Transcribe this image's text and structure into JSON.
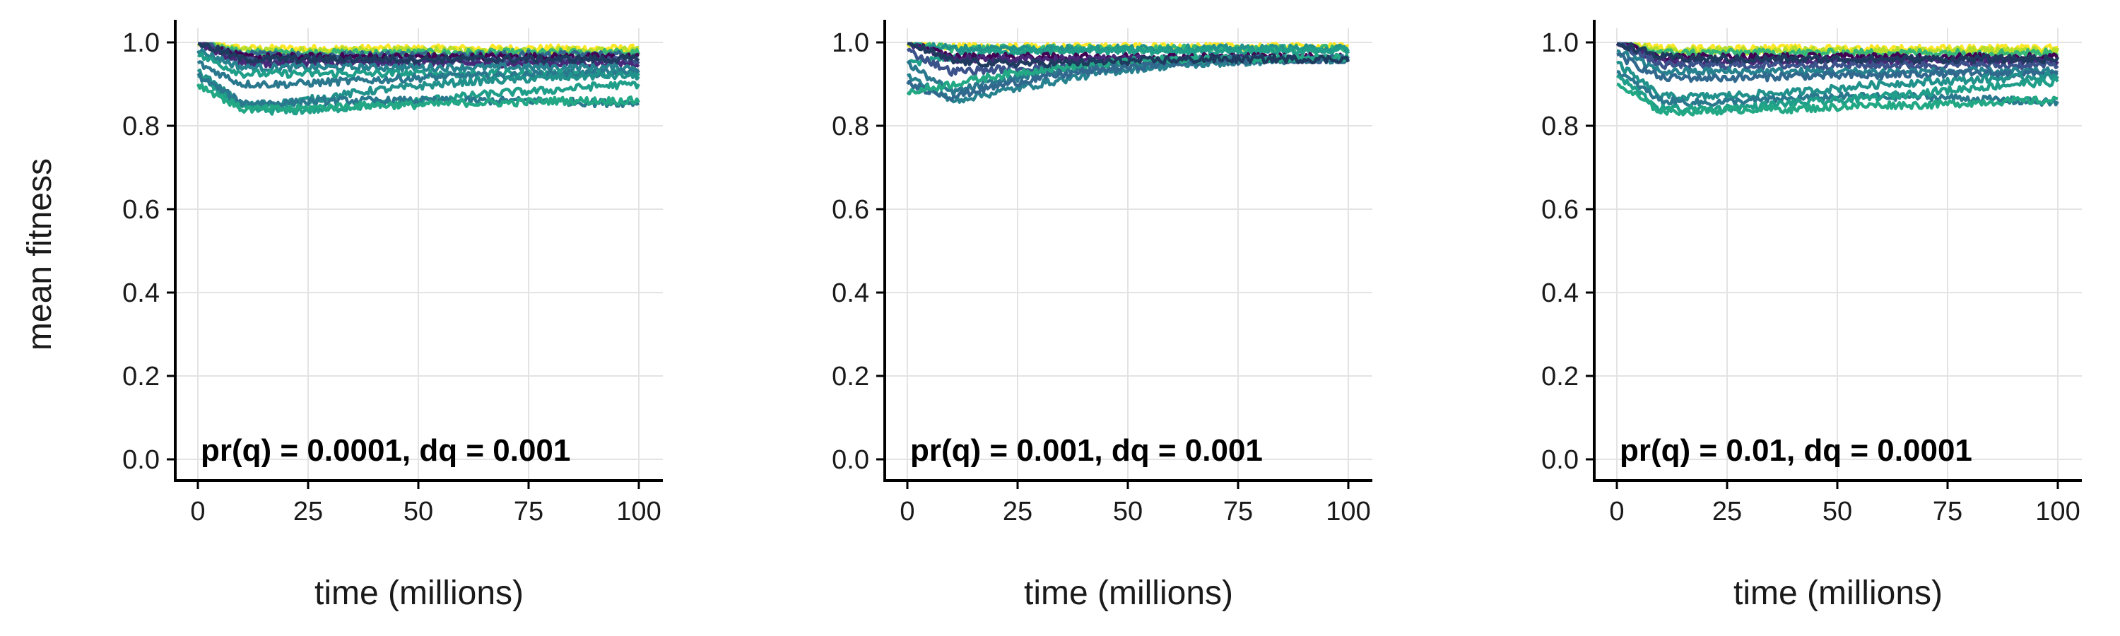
{
  "chart_data": [
    {
      "type": "line",
      "panel": "left",
      "annotation": "pr(q) = 0.0001, dq = 0.001",
      "xlabel": "time (millions)",
      "ylabel": "mean fitness",
      "xlim": [
        0,
        100
      ],
      "ylim": [
        0.0,
        1.0
      ],
      "xticks": [
        "0",
        "25",
        "50",
        "75",
        "100"
      ],
      "yticks": [
        "0.0",
        "0.2",
        "0.4",
        "0.6",
        "0.8",
        "1.0"
      ],
      "grid": true,
      "x": [
        0,
        10,
        20,
        30,
        40,
        50,
        60,
        70,
        80,
        90,
        100
      ],
      "series": [
        {
          "color": "#fde725",
          "values": [
            1.0,
            0.985,
            0.985,
            0.985,
            0.985,
            0.985,
            0.985,
            0.985,
            0.985,
            0.985,
            0.985
          ]
        },
        {
          "color": "#b5de2b",
          "values": [
            1.0,
            0.98,
            0.98,
            0.98,
            0.98,
            0.98,
            0.98,
            0.98,
            0.98,
            0.98,
            0.98
          ]
        },
        {
          "color": "#35b779",
          "values": [
            1.0,
            0.975,
            0.975,
            0.975,
            0.975,
            0.975,
            0.975,
            0.975,
            0.975,
            0.975,
            0.975
          ]
        },
        {
          "color": "#31688e",
          "values": [
            1.0,
            0.97,
            0.97,
            0.97,
            0.97,
            0.97,
            0.97,
            0.97,
            0.97,
            0.97,
            0.97
          ]
        },
        {
          "color": "#440154",
          "values": [
            1.0,
            0.965,
            0.965,
            0.965,
            0.965,
            0.965,
            0.965,
            0.965,
            0.965,
            0.965,
            0.965
          ]
        },
        {
          "color": "#3b528b",
          "values": [
            1.0,
            0.955,
            0.955,
            0.955,
            0.955,
            0.955,
            0.955,
            0.955,
            0.955,
            0.955,
            0.955
          ]
        },
        {
          "color": "#482878",
          "values": [
            1.0,
            0.95,
            0.95,
            0.95,
            0.95,
            0.95,
            0.95,
            0.95,
            0.95,
            0.95,
            0.95
          ]
        },
        {
          "color": "#26828e",
          "values": [
            0.98,
            0.94,
            0.94,
            0.94,
            0.94,
            0.94,
            0.94,
            0.94,
            0.94,
            0.94,
            0.94
          ]
        },
        {
          "color": "#1f9e89",
          "values": [
            0.97,
            0.925,
            0.925,
            0.925,
            0.925,
            0.925,
            0.925,
            0.925,
            0.925,
            0.925,
            0.925
          ]
        },
        {
          "color": "#2a788e",
          "values": [
            0.95,
            0.9,
            0.9,
            0.905,
            0.91,
            0.915,
            0.92,
            0.92,
            0.925,
            0.925,
            0.93
          ]
        },
        {
          "color": "#21918c",
          "values": [
            0.93,
            0.85,
            0.855,
            0.87,
            0.885,
            0.895,
            0.905,
            0.91,
            0.915,
            0.92,
            0.92
          ]
        },
        {
          "color": "#1f9e89",
          "values": [
            0.92,
            0.84,
            0.835,
            0.84,
            0.85,
            0.86,
            0.87,
            0.88,
            0.885,
            0.895,
            0.9
          ]
        },
        {
          "color": "#2a788e",
          "values": [
            0.92,
            0.855,
            0.855,
            0.86,
            0.86,
            0.86,
            0.86,
            0.86,
            0.86,
            0.855,
            0.855
          ]
        },
        {
          "color": "#22a884",
          "values": [
            0.9,
            0.84,
            0.84,
            0.845,
            0.85,
            0.85,
            0.855,
            0.855,
            0.86,
            0.86,
            0.86
          ]
        },
        {
          "color": "#1f3a5f",
          "values": [
            1.0,
            0.96,
            0.96,
            0.96,
            0.96,
            0.96,
            0.96,
            0.96,
            0.96,
            0.96,
            0.96
          ]
        }
      ]
    },
    {
      "type": "line",
      "panel": "middle",
      "annotation": "pr(q) = 0.001, dq = 0.001",
      "xlabel": "time (millions)",
      "ylabel": "",
      "xlim": [
        0,
        100
      ],
      "ylim": [
        0.0,
        1.0
      ],
      "xticks": [
        "0",
        "25",
        "50",
        "75",
        "100"
      ],
      "yticks": [
        "0.0",
        "0.2",
        "0.4",
        "0.6",
        "0.8",
        "1.0"
      ],
      "grid": true,
      "x": [
        0,
        10,
        20,
        30,
        40,
        50,
        60,
        70,
        80,
        90,
        100
      ],
      "series": [
        {
          "color": "#fde725",
          "values": [
            1.0,
            0.99,
            0.99,
            0.99,
            0.99,
            0.99,
            0.99,
            0.99,
            0.99,
            0.99,
            0.99
          ]
        },
        {
          "color": "#35b779",
          "values": [
            1.0,
            0.985,
            0.985,
            0.985,
            0.985,
            0.985,
            0.985,
            0.985,
            0.985,
            0.985,
            0.985
          ]
        },
        {
          "color": "#21918c",
          "values": [
            1.0,
            0.985,
            0.985,
            0.985,
            0.985,
            0.985,
            0.985,
            0.985,
            0.985,
            0.985,
            0.985
          ]
        },
        {
          "color": "#1f9e89",
          "values": [
            0.95,
            0.965,
            0.975,
            0.98,
            0.98,
            0.98,
            0.98,
            0.98,
            0.98,
            0.98,
            0.98
          ]
        },
        {
          "color": "#440154",
          "values": [
            1.0,
            0.965,
            0.965,
            0.965,
            0.965,
            0.965,
            0.965,
            0.965,
            0.965,
            0.965,
            0.965
          ]
        },
        {
          "color": "#482878",
          "values": [
            1.0,
            0.96,
            0.96,
            0.96,
            0.96,
            0.96,
            0.96,
            0.96,
            0.96,
            0.96,
            0.96
          ]
        },
        {
          "color": "#3b528b",
          "values": [
            0.98,
            0.93,
            0.935,
            0.94,
            0.945,
            0.95,
            0.955,
            0.955,
            0.96,
            0.96,
            0.96
          ]
        },
        {
          "color": "#2a788e",
          "values": [
            0.95,
            0.88,
            0.905,
            0.925,
            0.94,
            0.95,
            0.955,
            0.96,
            0.96,
            0.96,
            0.96
          ]
        },
        {
          "color": "#26828e",
          "values": [
            0.92,
            0.86,
            0.88,
            0.9,
            0.92,
            0.935,
            0.945,
            0.95,
            0.955,
            0.958,
            0.96
          ]
        },
        {
          "color": "#31688e",
          "values": [
            0.9,
            0.87,
            0.895,
            0.915,
            0.93,
            0.94,
            0.95,
            0.955,
            0.958,
            0.96,
            0.96
          ]
        },
        {
          "color": "#22a884",
          "values": [
            0.88,
            0.9,
            0.92,
            0.935,
            0.945,
            0.955,
            0.96,
            0.96,
            0.962,
            0.962,
            0.962
          ]
        },
        {
          "color": "#1f3a5f",
          "values": [
            1.0,
            0.955,
            0.95,
            0.95,
            0.952,
            0.955,
            0.958,
            0.96,
            0.96,
            0.96,
            0.96
          ]
        }
      ]
    },
    {
      "type": "line",
      "panel": "right",
      "annotation": "pr(q) = 0.01, dq = 0.0001",
      "xlabel": "time (millions)",
      "ylabel": "",
      "xlim": [
        0,
        100
      ],
      "ylim": [
        0.0,
        1.0
      ],
      "xticks": [
        "0",
        "25",
        "50",
        "75",
        "100"
      ],
      "yticks": [
        "0.0",
        "0.2",
        "0.4",
        "0.6",
        "0.8",
        "1.0"
      ],
      "grid": true,
      "x": [
        0,
        10,
        20,
        30,
        40,
        50,
        60,
        70,
        80,
        90,
        100
      ],
      "series": [
        {
          "color": "#fde725",
          "values": [
            1.0,
            0.985,
            0.985,
            0.985,
            0.985,
            0.985,
            0.985,
            0.985,
            0.985,
            0.985,
            0.985
          ]
        },
        {
          "color": "#b5de2b",
          "values": [
            1.0,
            0.98,
            0.98,
            0.98,
            0.98,
            0.98,
            0.98,
            0.98,
            0.98,
            0.98,
            0.98
          ]
        },
        {
          "color": "#35b779",
          "values": [
            1.0,
            0.975,
            0.975,
            0.975,
            0.975,
            0.975,
            0.975,
            0.975,
            0.975,
            0.975,
            0.975
          ]
        },
        {
          "color": "#440154",
          "values": [
            1.0,
            0.965,
            0.965,
            0.965,
            0.965,
            0.965,
            0.965,
            0.965,
            0.965,
            0.965,
            0.965
          ]
        },
        {
          "color": "#482878",
          "values": [
            1.0,
            0.955,
            0.955,
            0.955,
            0.955,
            0.955,
            0.955,
            0.955,
            0.955,
            0.955,
            0.955
          ]
        },
        {
          "color": "#3b528b",
          "values": [
            1.0,
            0.945,
            0.945,
            0.945,
            0.945,
            0.945,
            0.945,
            0.945,
            0.945,
            0.945,
            0.945
          ]
        },
        {
          "color": "#26828e",
          "values": [
            0.98,
            0.93,
            0.93,
            0.93,
            0.93,
            0.93,
            0.93,
            0.93,
            0.93,
            0.93,
            0.93
          ]
        },
        {
          "color": "#31688e",
          "values": [
            0.97,
            0.915,
            0.915,
            0.915,
            0.92,
            0.92,
            0.92,
            0.925,
            0.925,
            0.925,
            0.925
          ]
        },
        {
          "color": "#21918c",
          "values": [
            0.95,
            0.87,
            0.87,
            0.875,
            0.88,
            0.89,
            0.9,
            0.905,
            0.91,
            0.915,
            0.92
          ]
        },
        {
          "color": "#2a788e",
          "values": [
            0.93,
            0.86,
            0.855,
            0.86,
            0.865,
            0.87,
            0.87,
            0.87,
            0.865,
            0.86,
            0.855
          ]
        },
        {
          "color": "#1f9e89",
          "values": [
            0.92,
            0.84,
            0.84,
            0.845,
            0.855,
            0.86,
            0.87,
            0.88,
            0.89,
            0.9,
            0.905
          ]
        },
        {
          "color": "#22a884",
          "values": [
            0.9,
            0.835,
            0.835,
            0.84,
            0.84,
            0.845,
            0.85,
            0.85,
            0.855,
            0.86,
            0.86
          ]
        },
        {
          "color": "#1f3a5f",
          "values": [
            1.0,
            0.965,
            0.96,
            0.96,
            0.96,
            0.96,
            0.96,
            0.96,
            0.96,
            0.96,
            0.96
          ]
        }
      ]
    }
  ]
}
